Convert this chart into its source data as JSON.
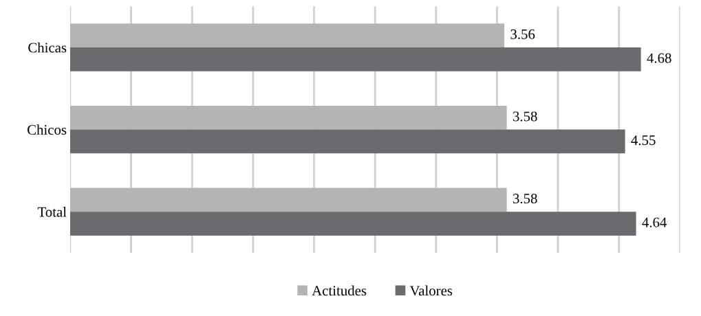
{
  "chart_data": {
    "type": "bar",
    "orientation": "horizontal",
    "categories": [
      "Chicas",
      "Chicos",
      "Total"
    ],
    "series": [
      {
        "name": "Actitudes",
        "color": "#b3b4b6",
        "values": [
          3.56,
          3.58,
          3.58
        ]
      },
      {
        "name": "Valores",
        "color": "#6b6b6f",
        "values": [
          4.68,
          4.55,
          4.64
        ]
      }
    ],
    "xlim": [
      0,
      5
    ],
    "xticks": [
      {
        "value": 0,
        "label": null
      },
      {
        "value": 0.5,
        "label": null
      },
      {
        "value": 1,
        "label": null
      },
      {
        "value": 1.5,
        "label": null
      },
      {
        "value": 2,
        "label": null
      },
      {
        "value": 2.5,
        "label": null
      },
      {
        "value": 3,
        "label": null
      },
      {
        "value": 3.5,
        "label": null
      },
      {
        "value": 4,
        "label": null
      },
      {
        "value": 4.5,
        "label": null
      },
      {
        "value": 5,
        "label": null
      }
    ],
    "tick_labels": "y",
    "grid": "x",
    "legend": "bottom",
    "data_labels": true
  }
}
